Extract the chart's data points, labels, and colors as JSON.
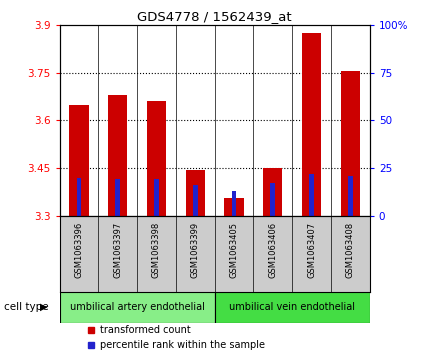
{
  "title": "GDS4778 / 1562439_at",
  "samples": [
    "GSM1063396",
    "GSM1063397",
    "GSM1063398",
    "GSM1063399",
    "GSM1063405",
    "GSM1063406",
    "GSM1063407",
    "GSM1063408"
  ],
  "transformed_count": [
    3.65,
    3.68,
    3.66,
    3.445,
    3.355,
    3.45,
    3.875,
    3.755
  ],
  "percentile_rank": [
    20,
    19,
    19,
    16,
    13,
    17,
    22,
    21
  ],
  "ylim": [
    3.3,
    3.9
  ],
  "yticks": [
    3.3,
    3.45,
    3.6,
    3.75,
    3.9
  ],
  "ytick_labels": [
    "3.3",
    "3.45",
    "3.6",
    "3.75",
    "3.9"
  ],
  "y2lim": [
    0,
    100
  ],
  "y2ticks": [
    0,
    25,
    50,
    75,
    100
  ],
  "y2tick_labels": [
    "0",
    "25",
    "50",
    "75",
    "100%"
  ],
  "bar_color": "#cc0000",
  "percentile_color": "#2222cc",
  "cell_type_groups": [
    {
      "label": "umbilical artery endothelial",
      "start": 0,
      "end": 3,
      "color": "#88ee88"
    },
    {
      "label": "umbilical vein endothelial",
      "start": 4,
      "end": 7,
      "color": "#44dd44"
    }
  ],
  "cell_type_label": "cell type",
  "legend_items": [
    {
      "label": "transformed count",
      "color": "#cc0000"
    },
    {
      "label": "percentile rank within the sample",
      "color": "#2222cc"
    }
  ],
  "bar_width": 0.5,
  "base_value": 3.3,
  "percentile_bar_width": 0.12,
  "background_color": "#ffffff",
  "plot_bg_color": "#ffffff",
  "tick_area_bg": "#cccccc"
}
